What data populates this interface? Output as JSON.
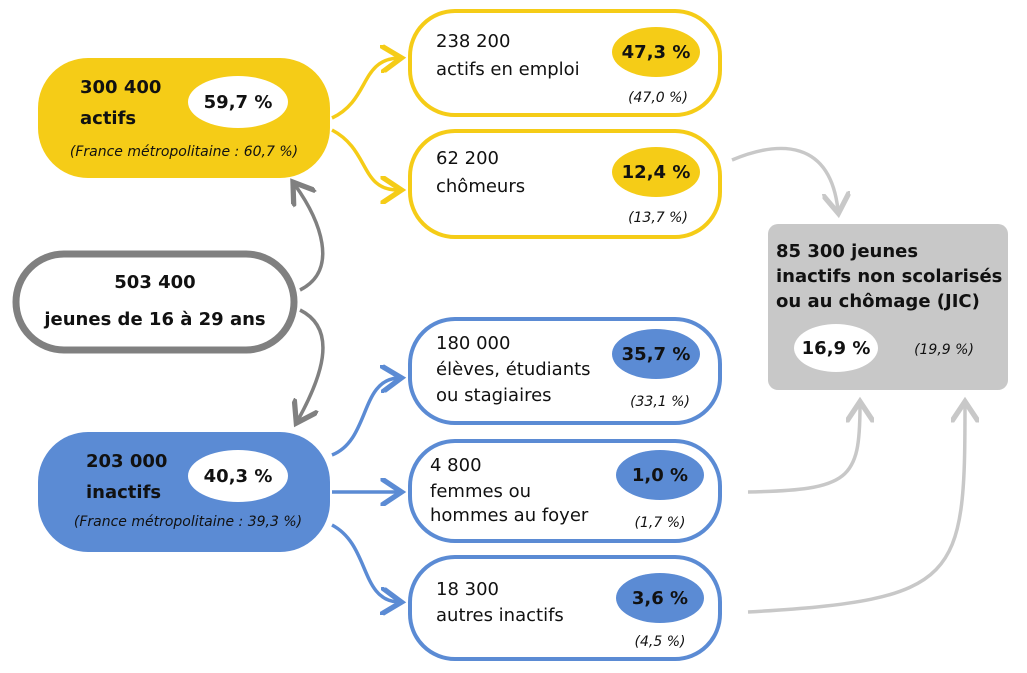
{
  "total": {
    "count": "503 400",
    "label": "jeunes de 16 à 29 ans"
  },
  "actifs": {
    "count": "300 400",
    "label": "actifs",
    "share": "59,7 %",
    "reference": "(France métropolitaine : 60,7 %)"
  },
  "inactifs": {
    "count": "203 000",
    "label": "inactifs",
    "share": "40,3 %",
    "reference": "(France métropolitaine : 39,3 %)"
  },
  "groups": [
    {
      "count": "238 200",
      "label_lines": [
        "actifs en emploi"
      ],
      "share": "47,3 %",
      "reference": "(47,0 %)"
    },
    {
      "count": "62 200",
      "label_lines": [
        "chômeurs"
      ],
      "share": "12,4 %",
      "reference": "(13,7 %)"
    },
    {
      "count": "180 000",
      "label_lines": [
        "élèves, étudiants",
        "ou stagiaires"
      ],
      "share": "35,7 %",
      "reference": "(33,1 %)"
    },
    {
      "count": "4 800",
      "label_lines": [
        "femmes ou",
        "hommes au foyer"
      ],
      "share": "1,0 %",
      "reference": "(1,7 %)"
    },
    {
      "count": "18 300",
      "label_lines": [
        "autres inactifs"
      ],
      "share": "3,6 %",
      "reference": "(4,5 %)"
    }
  ],
  "jic": {
    "title_lines": [
      "85 300 jeunes",
      "inactifs non scolarisés",
      "ou au chômage (JIC)"
    ],
    "share": "16,9 %",
    "reference": "(19,9 %)"
  }
}
